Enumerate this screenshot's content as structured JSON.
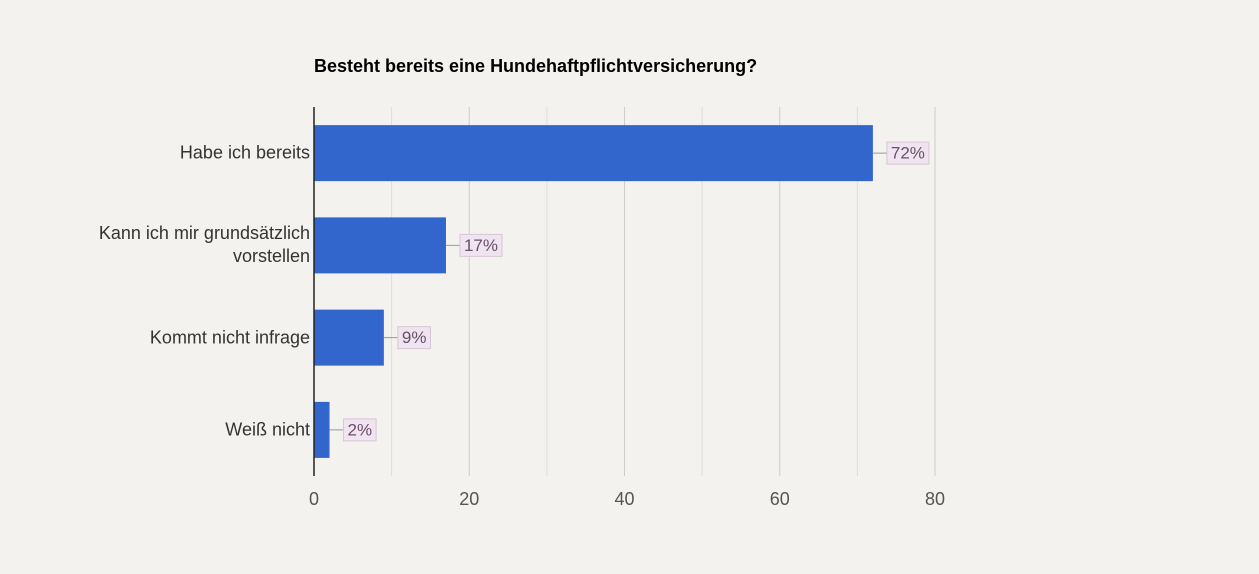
{
  "chart_data": {
    "type": "hbar",
    "title": "Besteht bereits eine Hundehaftpflichtversicherung?",
    "categories": [
      "Habe ich bereits",
      "Kann ich mir grundsätzlich vorstellen",
      "Kommt nicht infrage",
      "Weiß nicht"
    ],
    "values": [
      72,
      17,
      9,
      2
    ],
    "value_labels": [
      "72%",
      "17%",
      "9%",
      "2%"
    ],
    "color": "#3366cc",
    "xlim": [
      0,
      80
    ],
    "xticks": [
      0,
      20,
      40,
      60,
      80
    ],
    "minor_gridlines": [
      10,
      30,
      50,
      70
    ],
    "grid": true
  }
}
